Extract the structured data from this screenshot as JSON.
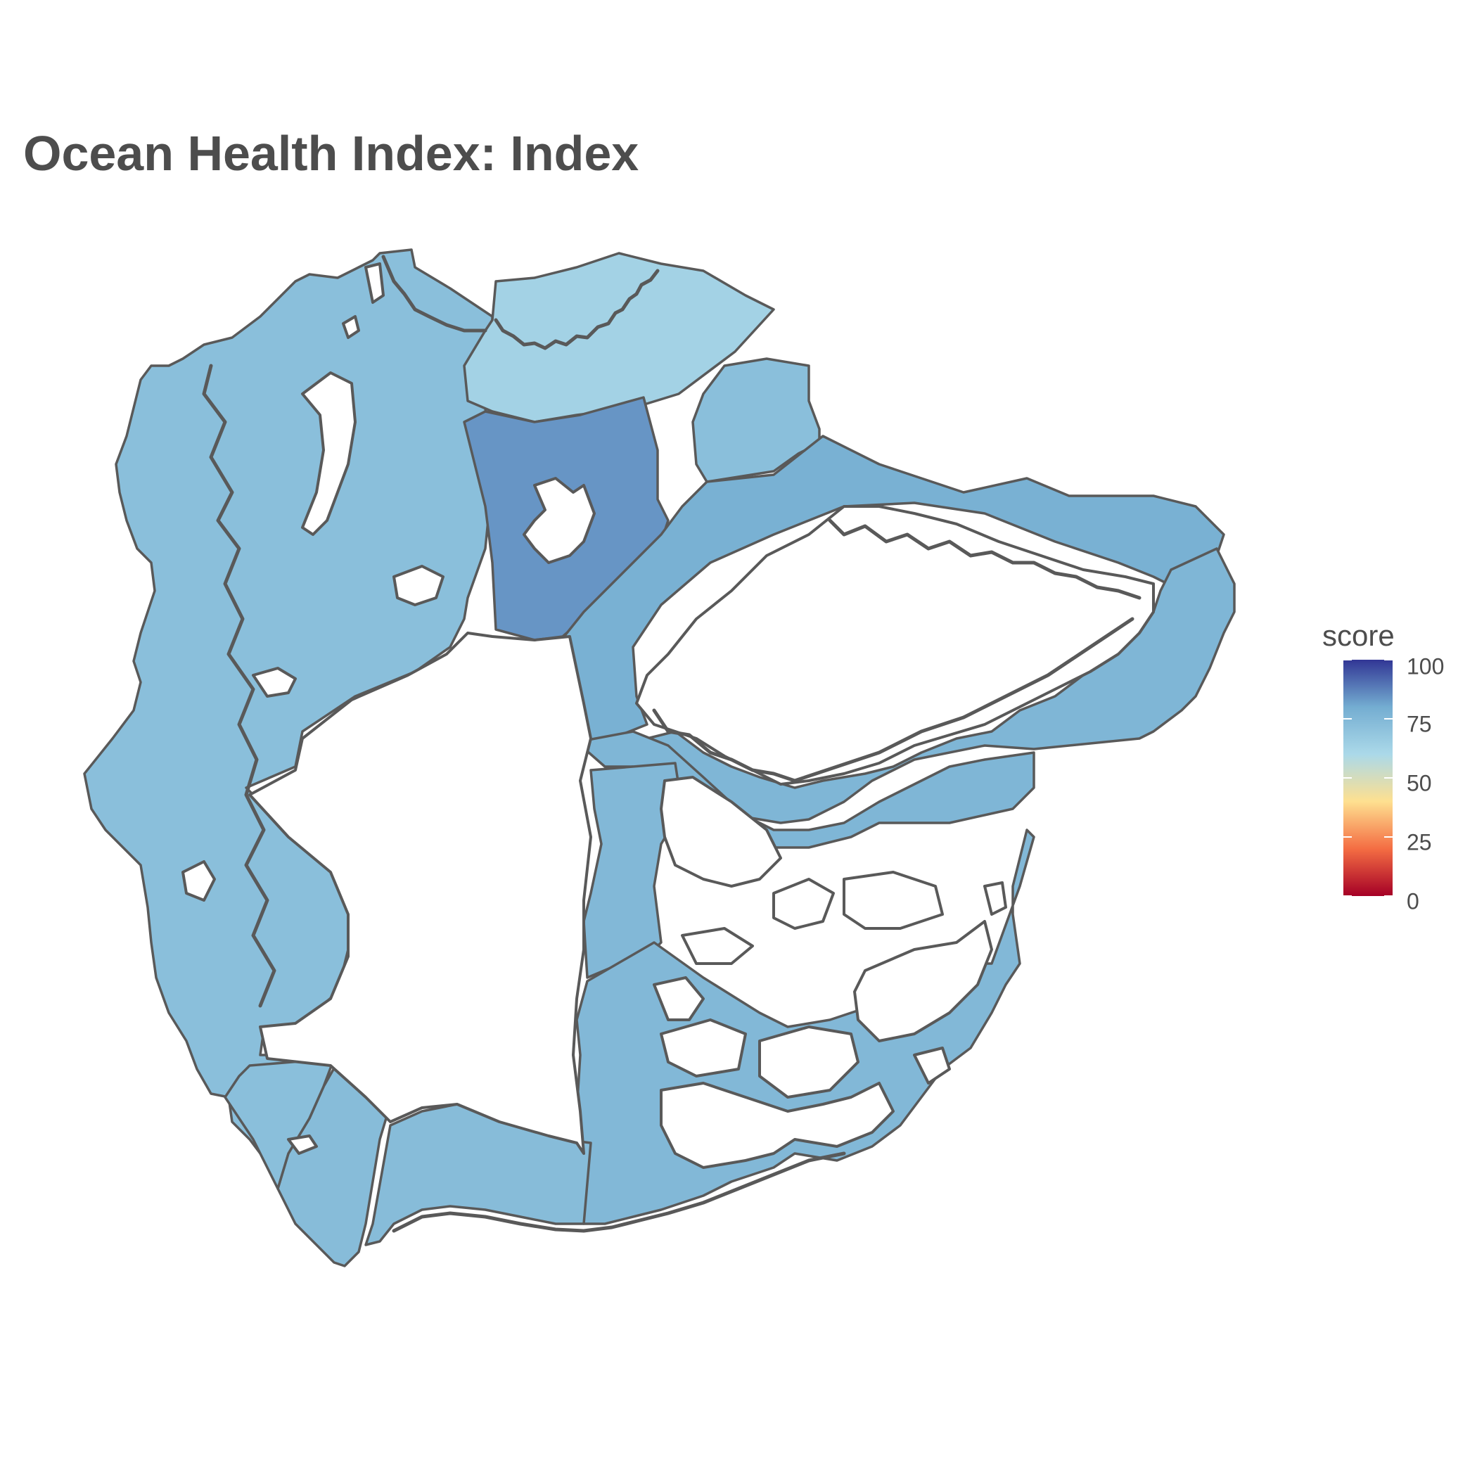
{
  "title": "Ocean Health Index: Index",
  "legend": {
    "title": "score",
    "ticks": [
      "100",
      "75",
      "50",
      "25",
      "0"
    ],
    "tick_values": [
      100,
      75,
      50,
      25,
      0
    ],
    "range": [
      0,
      100
    ],
    "palette": [
      "#a50026",
      "#f46d43",
      "#fee090",
      "#abd9e9",
      "#74add1",
      "#313695"
    ]
  },
  "map": {
    "outline_color": "#595959",
    "land_color": "#ffffff",
    "regions": [
      {
        "id": "northern-norway",
        "score": 72
      },
      {
        "id": "barents-sea",
        "score": 63
      },
      {
        "id": "svalbard",
        "score": 84
      },
      {
        "id": "jan-mayen",
        "score": 72
      },
      {
        "id": "east-greenland",
        "score": 78
      },
      {
        "id": "south-greenland",
        "score": 76
      },
      {
        "id": "north-greenland",
        "score": 76
      },
      {
        "id": "canadian-arctic-west",
        "score": 75
      },
      {
        "id": "canadian-arctic-east",
        "score": 75
      },
      {
        "id": "alaska-beaufort",
        "score": 73
      },
      {
        "id": "alaska-chukchi",
        "score": 73
      },
      {
        "id": "russia-siberia",
        "score": 72
      }
    ]
  }
}
